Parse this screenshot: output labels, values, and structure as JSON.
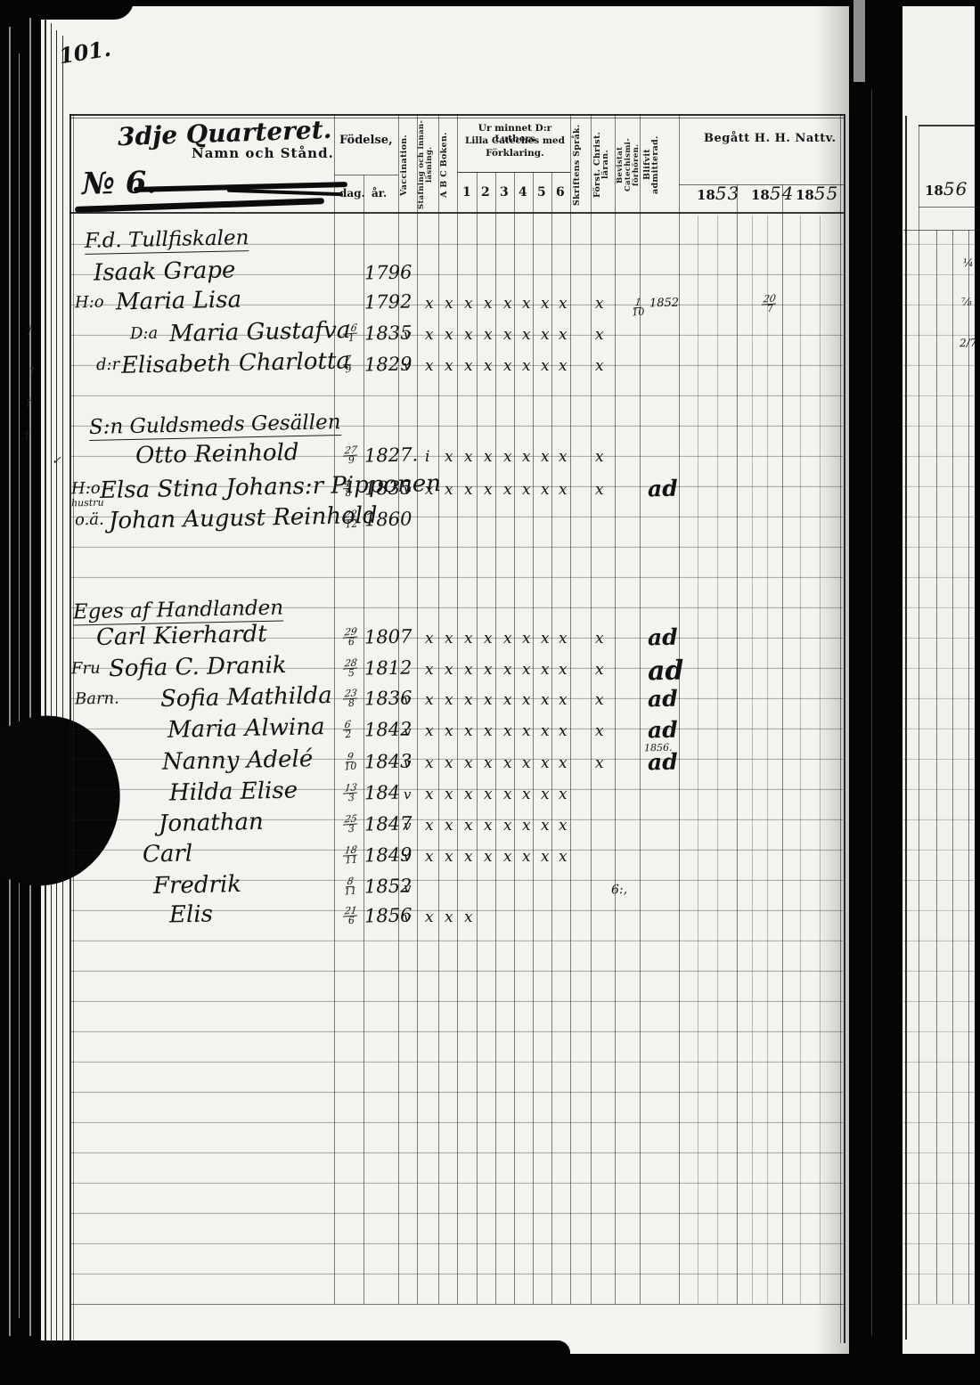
{
  "page": {
    "folio": "101.",
    "table_header": {
      "quarter": "3dje Quarteret.",
      "name_column": "Namn och Stånd.",
      "household_no": "№ 6.",
      "birth": {
        "group": "Födelse,",
        "day": "dag.",
        "year": "år."
      },
      "vaccination": "Vaccination.",
      "spelling_reading": "Stafning och innan-läsning.",
      "abc_book": "A B C Boken.",
      "catechism_memory": {
        "title_line1": "Ur minnet D:r Luthers",
        "title_line2": "Lilla Cateches med",
        "title_line3": "Förklaring.",
        "sections": [
          "1",
          "2",
          "3",
          "4",
          "5",
          "6"
        ]
      },
      "scripture_language": "Skriftens Språk.",
      "christian_doctrine": "Först. Christ. läran.",
      "attended_examinations": "Bevistat Catechismi- förhören.",
      "admitted": "Blifvit admitterad.",
      "communion": {
        "title": "Begått H. H. Nattv.",
        "years": [
          "1853",
          "1854",
          "1855"
        ]
      },
      "next_page_year": "1856"
    },
    "groups": [
      {
        "heading": "F.d. Tullfiskalen",
        "rows": [
          {
            "name": "Isaak Grape",
            "birth_year": "1796"
          },
          {
            "prefix": "H:o",
            "name": "Maria Lisa",
            "birth_year": "1792",
            "marks": "xxxxxxxx",
            "doctrine_mark": "x",
            "admitted_date": "1/10 1852",
            "communion_1854": "20/7"
          },
          {
            "prefix": "D:a",
            "name": "Maria Gustafva",
            "birth_day": "16/1",
            "birth_year": "1835",
            "vaccinated": "v",
            "marks": "xxxxxxxx",
            "doctrine_mark": "x"
          },
          {
            "prefix": "d:r",
            "name": "Elisabeth Charlotta",
            "birth_day": "7/9",
            "birth_year": "1829",
            "vaccinated": "v",
            "marks": "xxxxxxxx",
            "doctrine_mark": "x"
          }
        ]
      },
      {
        "heading": "S:n Guldsmeds Gesällen",
        "rows": [
          {
            "name": "Otto Reinhold",
            "birth_day": "27/9",
            "birth_year": "1827.",
            "marks": "ixxxxxxx",
            "doctrine_mark": "x"
          },
          {
            "prefix": "H:o",
            "name": "Elsa Stina Johans:r Pipponen",
            "note_below_prefix": "hustru",
            "birth_day": "4/8",
            "birth_year": "1835",
            "vaccinated": "v",
            "marks": "xxxxxxxx",
            "doctrine_mark": "x",
            "admitted_mark": "ad"
          },
          {
            "prefix": "o.ä.",
            "name": "Johan August Reinhold",
            "birth_day": "22/12",
            "birth_year": "1860"
          }
        ]
      },
      {
        "heading": "Eges af Handlanden",
        "rows": [
          {
            "name": "Carl Kierhardt",
            "birth_day": "29/6",
            "birth_year": "1807",
            "marks": "xxxxxxxx",
            "doctrine_mark": "x",
            "admitted_mark": "ad"
          },
          {
            "prefix": "Fru",
            "name": "Sofia C. Dranik",
            "birth_day": "28/5",
            "birth_year": "1812",
            "marks": "xxxxxxxx",
            "doctrine_mark": "x",
            "admitted_mark": "ad",
            "admitted_big": true
          },
          {
            "prefix": "Barn.",
            "name": "Sofia Mathilda",
            "birth_day": "23/8",
            "birth_year": "1836",
            "vaccinated": "v",
            "marks": "xxxxxxxx",
            "doctrine_mark": "x",
            "admitted_mark": "ad"
          },
          {
            "name": "Maria Alwina",
            "birth_day": "6/2",
            "birth_year": "1842",
            "vaccinated": "v",
            "marks": "xxxxxxxx",
            "doctrine_mark": "x",
            "admitted_mark": "ad",
            "admitted_year_note": "1856."
          },
          {
            "name": "Nanny Adelé",
            "birth_day": "9/10",
            "birth_year": "1843",
            "vaccinated": "v",
            "marks": "xxxxxxxx",
            "doctrine_mark": "x",
            "admitted_mark": "ad"
          },
          {
            "name": "Hilda Elise",
            "birth_day": "13/3",
            "birth_year": "184",
            "vaccinated": "v",
            "marks": "xxxxxxxx"
          },
          {
            "name": "Jonathan",
            "birth_day": "25/3",
            "birth_year": "1847",
            "vaccinated": "v",
            "marks": "xxxxxxxx"
          },
          {
            "name": "Carl",
            "birth_day": "18/11",
            "birth_year": "1849",
            "vaccinated": "v",
            "marks": "xxxxxxxx"
          },
          {
            "name": "Fredrik",
            "birth_day": "8/11",
            "birth_year": "1852",
            "vaccinated": "v",
            "attended_note": "6:,"
          },
          {
            "name": "Elis",
            "birth_day": "21/6",
            "birth_year": "1856",
            "vaccinated": "v",
            "marks": "xxx"
          }
        ]
      }
    ],
    "margin_marks": [
      "†",
      "†",
      "†",
      "†",
      "✓"
    ],
    "right_edge_notes": [
      "¼",
      "⅞",
      "2/7"
    ]
  }
}
